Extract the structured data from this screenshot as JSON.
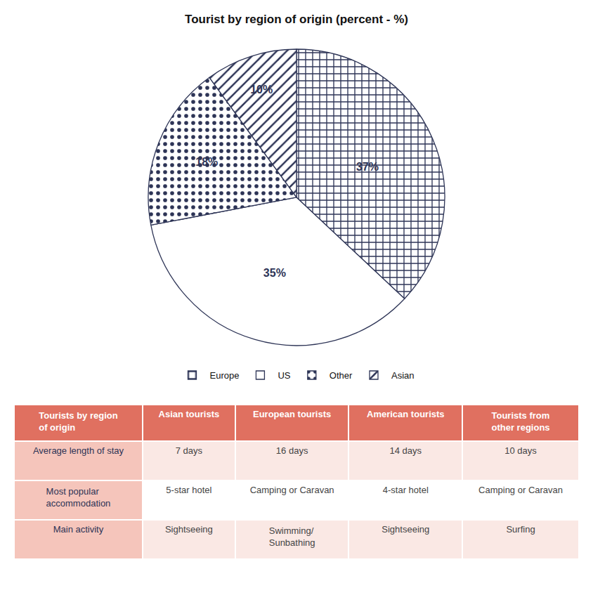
{
  "chart_data": [
    {
      "type": "pie",
      "title": "Tourist by region of origin (percent - %)",
      "categories": [
        "Europe",
        "US",
        "Other",
        "Asian"
      ],
      "values": [
        37,
        35,
        18,
        10
      ],
      "value_labels": [
        "37%",
        "35%",
        "18%",
        "10%"
      ],
      "data_labels": true,
      "colors": [
        "white",
        "white",
        "white",
        "white"
      ],
      "legend": "bottom"
    },
    {
      "type": "table",
      "color": "#E07060",
      "columns": [
        "Tourists by region\nof origin",
        "Asian tourists",
        "European tourists",
        "American tourists",
        "Tourists from\nother regions"
      ],
      "rows": [
        [
          "Average length of stay",
          "7 days",
          "16 days",
          "14 days",
          "10 days"
        ],
        [
          "Most popular\naccommodation",
          "5-star hotel",
          "Camping or Caravan",
          "4-star hotel",
          "Camping or Caravan"
        ],
        [
          "Main activity",
          "Sightseeing",
          "Swimming/\nSunbathing",
          "Sightseeing",
          "Surfing"
        ]
      ]
    }
  ]
}
